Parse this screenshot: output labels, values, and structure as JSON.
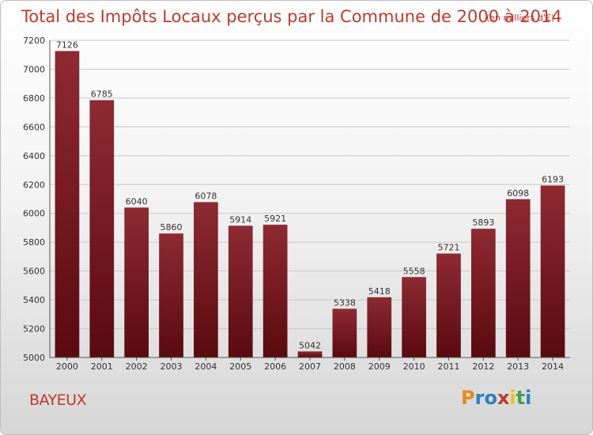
{
  "chart_data": {
    "type": "bar",
    "title": "Total des Impôts Locaux perçus par la Commune de 2000 à 2014",
    "unit_note": "(en milliers d'€)",
    "categories": [
      "2000",
      "2001",
      "2002",
      "2003",
      "2004",
      "2005",
      "2006",
      "2007",
      "2008",
      "2009",
      "2010",
      "2011",
      "2012",
      "2013",
      "2014"
    ],
    "values": [
      7126,
      6785,
      6040,
      5860,
      6078,
      5914,
      5921,
      5042,
      5338,
      5418,
      5558,
      5721,
      5893,
      6098,
      6193
    ],
    "ylim": [
      5000,
      7200
    ],
    "yticks": [
      5000,
      5200,
      5400,
      5600,
      5800,
      6000,
      6200,
      6400,
      6600,
      6800,
      7000,
      7200
    ],
    "xlabel": "",
    "ylabel": "",
    "grid": true,
    "bar_color": "#7a1a22"
  },
  "commune": "BAYEUX",
  "logo": {
    "letters": [
      "P",
      "r",
      "o",
      "x",
      "i",
      "t",
      "i"
    ],
    "colors": [
      "#e8891c",
      "#2d7fc1",
      "#2d7fc1",
      "#c0392b",
      "#e8c21c",
      "#43a047",
      "#2d7fc1"
    ]
  }
}
